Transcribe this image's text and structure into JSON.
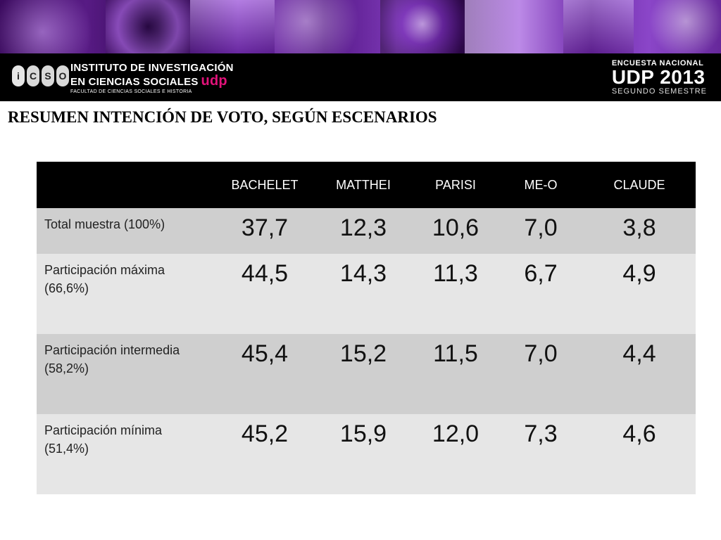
{
  "header": {
    "logo_letters": [
      "i",
      "C",
      "S",
      "O"
    ],
    "institute_line1": "INSTITUTO DE INVESTIGACIÓN",
    "institute_line2": "EN CIENCIAS SOCIALES",
    "institute_udp": "udp",
    "institute_line3": "FACULTAD DE CIENCIAS SOCIALES E HISTORIA",
    "survey_line1": "ENCUESTA NACIONAL",
    "survey_line2": "UDP 2013",
    "survey_line3": "SEGUNDO SEMESTRE",
    "accent_color": "#e2127a"
  },
  "title": "RESUMEN INTENCIÓN DE VOTO, SEGÚN ESCENARIOS",
  "table": {
    "columns": [
      "",
      "BACHELET",
      "MATTHEI",
      "PARISI",
      "ME-O",
      "CLAUDE"
    ],
    "rows": [
      {
        "label": "Total muestra (100%)",
        "values": [
          "37,7",
          "12,3",
          "10,6",
          "7,0",
          "3,8"
        ]
      },
      {
        "label": "Participación máxima (66,6%)",
        "values": [
          "44,5",
          "14,3",
          "11,3",
          "6,7",
          "4,9"
        ]
      },
      {
        "label": "Participación intermedia (58,2%)",
        "values": [
          "45,4",
          "15,2",
          "11,5",
          "7,0",
          "4,4"
        ]
      },
      {
        "label": "Participación mínima (51,4%)",
        "values": [
          "45,2",
          "15,9",
          "12,0",
          "7,3",
          "4,6"
        ]
      }
    ]
  }
}
